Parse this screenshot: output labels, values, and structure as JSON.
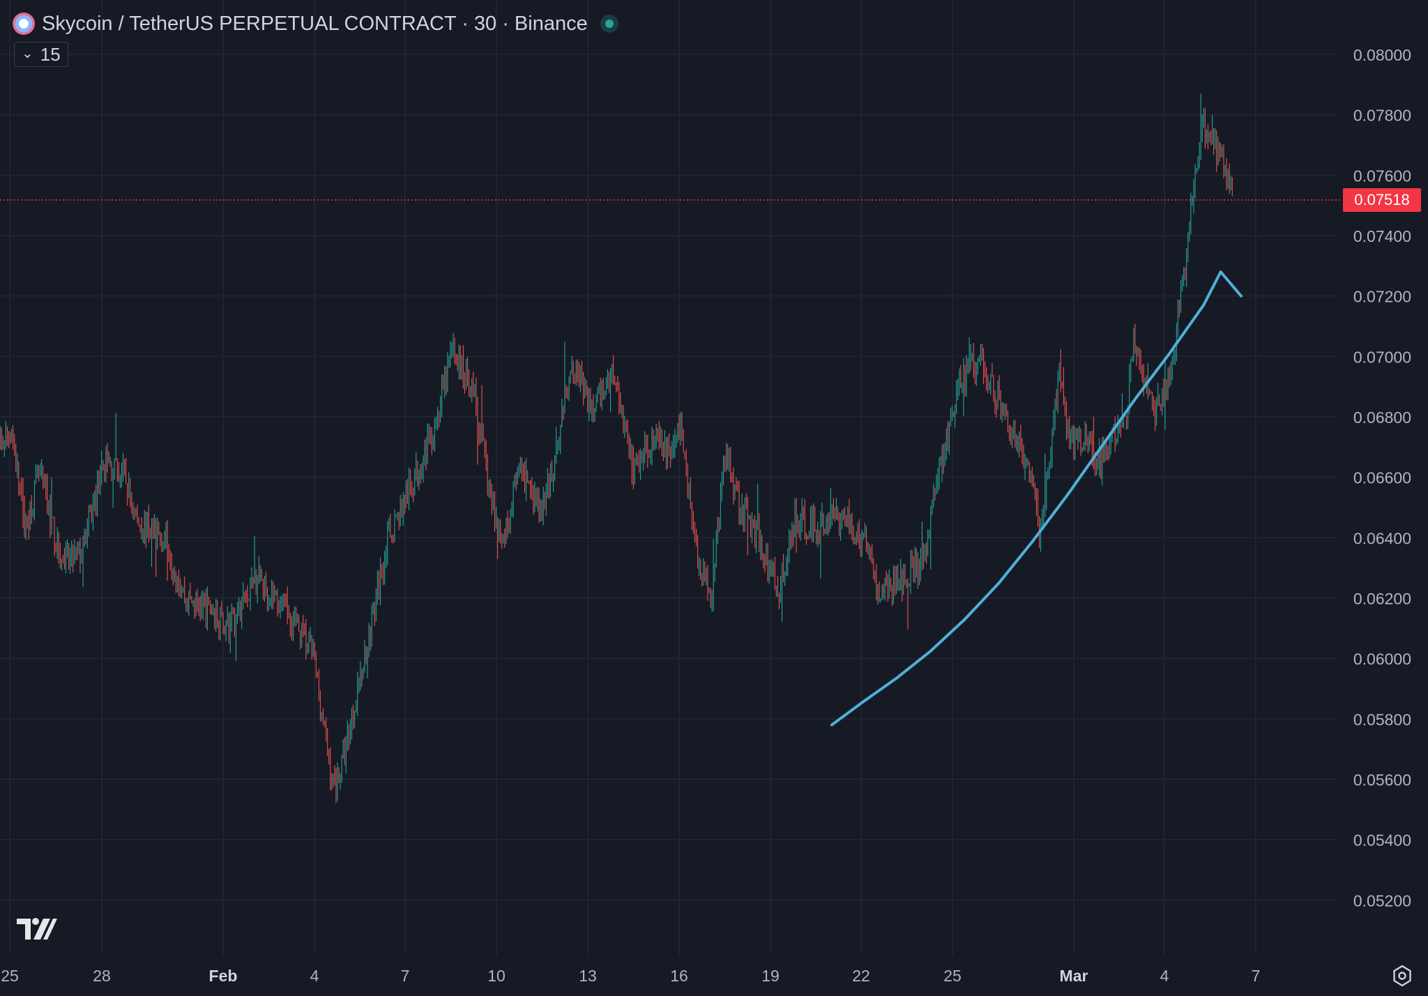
{
  "header": {
    "title": "Skycoin / TetherUS PERPETUAL CONTRACT · 30 · Binance",
    "indicator_count": "15",
    "status": "market-open"
  },
  "icons": [
    "skycoin-logo-icon",
    "chevron-down-icon",
    "tradingview-logo-icon",
    "settings-gear-icon"
  ],
  "colors": {
    "background": "#161a25",
    "grid": "#232734",
    "up_candle": "#26a69a",
    "down_candle": "#ef5350",
    "trend_line": "#4fb0d8",
    "last_price": "#f23645",
    "axis_text": "#b2b5be"
  },
  "chart_data": {
    "type": "candlestick",
    "x_tick_labels": [
      "25",
      "28",
      "Feb",
      "4",
      "7",
      "10",
      "13",
      "16",
      "19",
      "22",
      "25",
      "Mar",
      "4",
      "7"
    ],
    "y_tick_labels": [
      "0.08000",
      "0.07800",
      "0.07600",
      "0.07400",
      "0.07200",
      "0.07000",
      "0.06800",
      "0.06600",
      "0.06400",
      "0.06200",
      "0.06000",
      "0.05800",
      "0.05600",
      "0.05400",
      "0.05200"
    ],
    "y_range": [
      0.0505,
      0.0812
    ],
    "last_price": "0.07518",
    "price_path": [
      [
        24.9,
        0.0667
      ],
      [
        25.5,
        0.0676
      ],
      [
        26.0,
        0.0643
      ],
      [
        26.5,
        0.0662
      ],
      [
        27.3,
        0.0631
      ],
      [
        28.0,
        0.0635
      ],
      [
        28.8,
        0.0665
      ],
      [
        29.5,
        0.0661
      ],
      [
        30.0,
        0.0645
      ],
      [
        31.0,
        0.064
      ],
      [
        31.7,
        0.062
      ],
      [
        32.6,
        0.0616
      ],
      [
        33.3,
        0.061
      ],
      [
        34.3,
        0.0627
      ],
      [
        35.5,
        0.0614
      ],
      [
        36.3,
        0.0602
      ],
      [
        37.0,
        0.0558
      ],
      [
        37.3,
        0.0563
      ],
      [
        38.2,
        0.0602
      ],
      [
        39.0,
        0.064
      ],
      [
        39.9,
        0.0658
      ],
      [
        40.8,
        0.068
      ],
      [
        41.3,
        0.0703
      ],
      [
        42.1,
        0.0688
      ],
      [
        42.7,
        0.0652
      ],
      [
        43.1,
        0.0637
      ],
      [
        43.7,
        0.0662
      ],
      [
        44.5,
        0.0648
      ],
      [
        44.9,
        0.0662
      ],
      [
        45.6,
        0.07
      ],
      [
        46.3,
        0.0681
      ],
      [
        47.1,
        0.0696
      ],
      [
        47.8,
        0.0662
      ],
      [
        48.5,
        0.0673
      ],
      [
        49.1,
        0.0668
      ],
      [
        49.5,
        0.0677
      ],
      [
        50.1,
        0.0633
      ],
      [
        50.6,
        0.0622
      ],
      [
        51.1,
        0.0669
      ],
      [
        51.6,
        0.0652
      ],
      [
        52.3,
        0.064
      ],
      [
        53.0,
        0.0622
      ],
      [
        53.6,
        0.0646
      ],
      [
        54.4,
        0.0643
      ],
      [
        55.3,
        0.0647
      ],
      [
        56.2,
        0.0638
      ],
      [
        56.6,
        0.0621
      ],
      [
        57.6,
        0.0628
      ],
      [
        58.2,
        0.063
      ],
      [
        58.6,
        0.0655
      ],
      [
        59.0,
        0.067
      ],
      [
        59.5,
        0.069
      ],
      [
        60.2,
        0.07
      ],
      [
        60.8,
        0.0688
      ],
      [
        61.4,
        0.0676
      ],
      [
        62.1,
        0.066
      ],
      [
        62.4,
        0.064
      ],
      [
        63.1,
        0.0693
      ],
      [
        63.5,
        0.067
      ],
      [
        64.0,
        0.0675
      ],
      [
        64.5,
        0.0664
      ],
      [
        65.0,
        0.0672
      ],
      [
        65.5,
        0.0678
      ],
      [
        65.8,
        0.0707
      ],
      [
        66.5,
        0.0682
      ],
      [
        66.8,
        0.0686
      ],
      [
        67.2,
        0.07
      ],
      [
        67.5,
        0.072
      ],
      [
        67.9,
        0.0752
      ],
      [
        68.3,
        0.0778
      ],
      [
        68.7,
        0.077
      ],
      [
        69.0,
        0.0765
      ],
      [
        69.3,
        0.0755
      ],
      [
        69.4,
        0.0752
      ]
    ],
    "series": [
      {
        "type": "line",
        "x": [
          57.1,
          58.0,
          59.0,
          60.0,
          61.0,
          62.0,
          63.0,
          64.0,
          65.0,
          66.0,
          67.0,
          68.0,
          68.5,
          69.1
        ],
        "y": [
          0.0578,
          0.05855,
          0.05935,
          0.06025,
          0.0613,
          0.0625,
          0.0639,
          0.0654,
          0.067,
          0.0686,
          0.0701,
          0.0717,
          0.0728,
          0.072
        ]
      }
    ]
  }
}
